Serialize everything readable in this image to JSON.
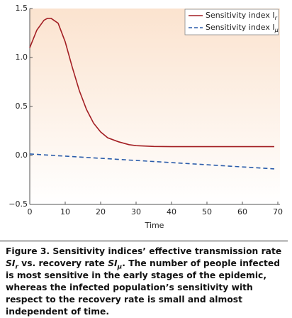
{
  "chart_data": {
    "type": "line",
    "x_label": "Time",
    "x": [
      0,
      2,
      4,
      5,
      6,
      8,
      10,
      12,
      14,
      16,
      18,
      20,
      22,
      25,
      28,
      30,
      35,
      40,
      45,
      50,
      55,
      60,
      65,
      69
    ],
    "series": [
      {
        "name": "Sensitivity index I",
        "name_subscript": "r",
        "color": "#a31f24",
        "dash": false,
        "values": [
          1.1,
          1.28,
          1.38,
          1.4,
          1.4,
          1.35,
          1.16,
          0.9,
          0.66,
          0.47,
          0.33,
          0.24,
          0.18,
          0.14,
          0.11,
          0.1,
          0.092,
          0.09,
          0.09,
          0.09,
          0.09,
          0.09,
          0.09,
          0.09
        ]
      },
      {
        "name": "Sensitivity index I",
        "name_subscript": "μ",
        "color": "#2a5caa",
        "dash": true,
        "values": [
          0.015,
          0.011,
          0.006,
          0.004,
          0.002,
          -0.003,
          -0.007,
          -0.011,
          -0.016,
          -0.02,
          -0.025,
          -0.029,
          -0.033,
          -0.04,
          -0.047,
          -0.051,
          -0.062,
          -0.073,
          -0.084,
          -0.095,
          -0.106,
          -0.117,
          -0.128,
          -0.137
        ]
      }
    ],
    "xlim": [
      0,
      70.6
    ],
    "ylim": [
      -0.5,
      1.5
    ],
    "xticks": [
      0,
      10,
      20,
      30,
      40,
      50,
      60,
      70
    ],
    "yticks": [
      {
        "value": -0.5,
        "label": "−0.5"
      },
      {
        "value": 0,
        "label": "0.0"
      },
      0.5,
      {
        "value": 1,
        "label": "1.0"
      },
      1.5
    ],
    "legend": "upper-right"
  },
  "caption": [
    {
      "text": "Figure 3. Sensitivity indices’ effective transmission rate "
    },
    {
      "text": "SI",
      "italic": true
    },
    {
      "text": "r",
      "sub": true
    },
    {
      "text": " vs. recovery rate "
    },
    {
      "text": "SI",
      "italic": true
    },
    {
      "text": "μ",
      "sub": true
    },
    {
      "text": ". The number of people infected is most sensitive in the early stages of the epidemic, whereas the infected population’s sensitivity with respect to the recovery rate is small and almost independent of time."
    }
  ]
}
